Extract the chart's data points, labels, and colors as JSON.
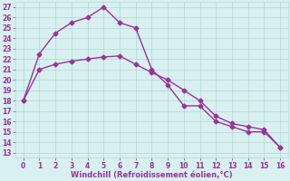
{
  "line1_x": [
    0,
    1,
    2,
    3,
    4,
    5,
    6,
    7,
    8,
    9,
    10,
    11,
    12,
    13,
    14,
    15,
    16
  ],
  "line1_y": [
    18.0,
    22.5,
    24.5,
    25.5,
    26.0,
    27.0,
    25.5,
    25.0,
    21.0,
    19.5,
    17.5,
    17.5,
    16.0,
    15.5,
    15.0,
    15.0,
    13.5
  ],
  "line2_x": [
    0,
    1,
    2,
    3,
    4,
    5,
    6,
    7,
    8,
    9,
    10,
    11,
    12,
    13,
    14,
    15,
    16
  ],
  "line2_y": [
    18.0,
    21.0,
    21.5,
    21.8,
    22.0,
    22.2,
    22.3,
    21.5,
    20.7,
    20.0,
    19.0,
    18.0,
    16.5,
    15.8,
    15.5,
    15.2,
    13.5
  ],
  "line_color": "#993399",
  "bg_color": "#d8f0f0",
  "grid_color": "#b0d8d8",
  "xlabel": "Windchill (Refroidissement éolien,°C)",
  "xlabel_color": "#993399",
  "ylabel_ticks": [
    13,
    14,
    15,
    16,
    17,
    18,
    19,
    20,
    21,
    22,
    23,
    24,
    25,
    26,
    27
  ],
  "xlim": [
    -0.5,
    16.5
  ],
  "ylim": [
    12.5,
    27.5
  ],
  "xticks": [
    0,
    1,
    2,
    3,
    4,
    5,
    6,
    7,
    8,
    9,
    10,
    11,
    12,
    13,
    14,
    15,
    16
  ],
  "marker_size": 2.5,
  "linewidth": 1.0
}
